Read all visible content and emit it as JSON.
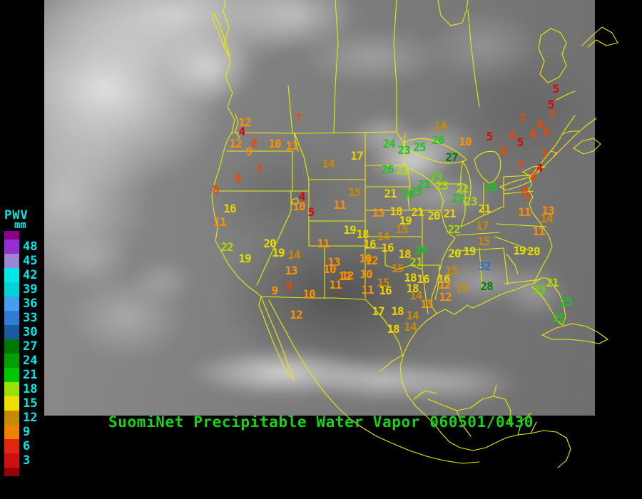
{
  "title": {
    "text": "SuomiNet Precipitable Water Vapor 060501/0430",
    "color": "#16D316"
  },
  "scale": {
    "title": "PWV",
    "unit": "mm",
    "label_color": "#00E8E8",
    "top_cap_color": "#8B008B",
    "bottom_cap_color": "#990000",
    "entries": [
      {
        "label": "48",
        "color": "#9430D0"
      },
      {
        "label": "45",
        "color": "#9C86D4"
      },
      {
        "label": "42",
        "color": "#00E8E8"
      },
      {
        "label": "39",
        "color": "#00D4D4"
      },
      {
        "label": "36",
        "color": "#44A0EE"
      },
      {
        "label": "33",
        "color": "#2E7ED8"
      },
      {
        "label": "30",
        "color": "#1C5AA0"
      },
      {
        "label": "27",
        "color": "#007800"
      },
      {
        "label": "24",
        "color": "#00A000"
      },
      {
        "label": "21",
        "color": "#00C800"
      },
      {
        "label": "18",
        "color": "#9BE000"
      },
      {
        "label": "15",
        "color": "#F0E000"
      },
      {
        "label": "12",
        "color": "#C48A00"
      },
      {
        "label": "9",
        "color": "#F08000"
      },
      {
        "label": "6",
        "color": "#E02810"
      },
      {
        "label": "3",
        "color": "#CC1010"
      }
    ]
  },
  "map": {
    "outline_color": "#ECEC00",
    "background_color": "#000000"
  },
  "palette": {
    "r": "#E00000",
    "f": "#F04600",
    "o": "#FF9000",
    "d": "#CC8A00",
    "y": "#EDD400",
    "Y": "#E3DE00",
    "l": "#AADC00",
    "L": "#5FD800",
    "G": "#1EC41E",
    "D": "#008000",
    "b": "#2E6EC8"
  },
  "stations": [
    [
      "7",
      418,
      166,
      "f"
    ],
    [
      "12",
      343,
      172,
      "o"
    ],
    [
      "4",
      339,
      185,
      "r"
    ],
    [
      "12",
      330,
      202,
      "o"
    ],
    [
      "8",
      356,
      201,
      "f"
    ],
    [
      "10",
      385,
      202,
      "o"
    ],
    [
      "11",
      409,
      205,
      "o"
    ],
    [
      "9",
      349,
      213,
      "o"
    ],
    [
      "7",
      363,
      237,
      "f"
    ],
    [
      "14",
      460,
      230,
      "d"
    ],
    [
      "9",
      333,
      251,
      "f"
    ],
    [
      "8",
      302,
      266,
      "f"
    ],
    [
      "16",
      322,
      293,
      "y"
    ],
    [
      "11",
      308,
      312,
      "o"
    ],
    [
      "4",
      423,
      276,
      "r"
    ],
    [
      "10",
      419,
      290,
      "o"
    ],
    [
      "5",
      436,
      298,
      "r"
    ],
    [
      "11",
      476,
      288,
      "o"
    ],
    [
      "19",
      490,
      323,
      "Y"
    ],
    [
      "18",
      508,
      329,
      "y"
    ],
    [
      "22",
      318,
      347,
      "l"
    ],
    [
      "19",
      343,
      363,
      "Y"
    ],
    [
      "20",
      378,
      342,
      "Y"
    ],
    [
      "19",
      390,
      355,
      "Y"
    ],
    [
      "14",
      412,
      358,
      "d"
    ],
    [
      "11",
      453,
      342,
      "o"
    ],
    [
      "13",
      408,
      380,
      "o"
    ],
    [
      "13",
      468,
      368,
      "o"
    ],
    [
      "10",
      462,
      378,
      "o"
    ],
    [
      "12",
      483,
      388,
      "o"
    ],
    [
      "11",
      470,
      400,
      "o"
    ],
    [
      "9",
      405,
      402,
      "f"
    ],
    [
      "9",
      385,
      408,
      "o"
    ],
    [
      "10",
      433,
      413,
      "o"
    ],
    [
      "12",
      415,
      442,
      "o"
    ],
    [
      "17",
      500,
      219,
      "y"
    ],
    [
      "24",
      545,
      202,
      "G"
    ],
    [
      "23",
      566,
      211,
      "G"
    ],
    [
      "25",
      588,
      207,
      "G"
    ],
    [
      "26",
      614,
      197,
      "G"
    ],
    [
      "10",
      652,
      199,
      "o"
    ],
    [
      "27",
      633,
      221,
      "D"
    ],
    [
      "14",
      617,
      177,
      "d"
    ],
    [
      "26",
      543,
      238,
      "G"
    ],
    [
      "21",
      564,
      240,
      "l"
    ],
    [
      "15",
      497,
      270,
      "d"
    ],
    [
      "21",
      547,
      272,
      "y"
    ],
    [
      "24",
      570,
      273,
      "G"
    ],
    [
      "25",
      583,
      269,
      "G"
    ],
    [
      "21",
      594,
      259,
      "G"
    ],
    [
      "23",
      611,
      249,
      "L"
    ],
    [
      "23",
      619,
      261,
      "l"
    ],
    [
      "22",
      648,
      265,
      "l"
    ],
    [
      "26",
      688,
      263,
      "G"
    ],
    [
      "23",
      641,
      279,
      "G"
    ],
    [
      "23",
      660,
      283,
      "l"
    ],
    [
      "21",
      679,
      293,
      "y"
    ],
    [
      "13",
      530,
      299,
      "o"
    ],
    [
      "18",
      555,
      297,
      "y"
    ],
    [
      "21",
      585,
      298,
      "y"
    ],
    [
      "20",
      608,
      303,
      "Y"
    ],
    [
      "21",
      630,
      300,
      "y"
    ],
    [
      "19",
      568,
      310,
      "Y"
    ],
    [
      "15",
      563,
      322,
      "d"
    ],
    [
      "22",
      636,
      322,
      "l"
    ],
    [
      "17",
      676,
      317,
      "d"
    ],
    [
      "14",
      537,
      332,
      "d"
    ],
    [
      "16",
      518,
      343,
      "y"
    ],
    [
      "16",
      543,
      348,
      "y"
    ],
    [
      "26",
      590,
      351,
      "G"
    ],
    [
      "18",
      567,
      357,
      "y"
    ],
    [
      "21",
      583,
      368,
      "l"
    ],
    [
      "10",
      512,
      363,
      "o"
    ],
    [
      "12",
      521,
      366,
      "o"
    ],
    [
      "15",
      557,
      377,
      "d"
    ],
    [
      "12",
      487,
      387,
      "o"
    ],
    [
      "10",
      513,
      385,
      "o"
    ],
    [
      "15",
      537,
      397,
      "d"
    ],
    [
      "18",
      575,
      390,
      "y"
    ],
    [
      "16",
      593,
      392,
      "y"
    ],
    [
      "16",
      622,
      392,
      "y"
    ],
    [
      "15",
      633,
      380,
      "d"
    ],
    [
      "20",
      637,
      356,
      "Y"
    ],
    [
      "19",
      658,
      353,
      "Y"
    ],
    [
      "15",
      678,
      339,
      "d"
    ],
    [
      "12",
      623,
      400,
      "o"
    ],
    [
      "15",
      647,
      405,
      "d"
    ],
    [
      "11",
      515,
      407,
      "o"
    ],
    [
      "16",
      540,
      408,
      "y"
    ],
    [
      "18",
      578,
      405,
      "y"
    ],
    [
      "14",
      583,
      415,
      "d"
    ],
    [
      "12",
      624,
      417,
      "o"
    ],
    [
      "13",
      598,
      427,
      "o"
    ],
    [
      "17",
      530,
      437,
      "y"
    ],
    [
      "18",
      557,
      437,
      "y"
    ],
    [
      "14",
      578,
      443,
      "d"
    ],
    [
      "14",
      575,
      459,
      "d"
    ],
    [
      "18",
      551,
      462,
      "y"
    ],
    [
      "19",
      728,
      352,
      "Y"
    ],
    [
      "20",
      748,
      353,
      "Y"
    ],
    [
      "32",
      679,
      374,
      "b"
    ],
    [
      "28",
      682,
      402,
      "D"
    ],
    [
      "23",
      756,
      407,
      "L"
    ],
    [
      "21",
      774,
      397,
      "l"
    ],
    [
      "25",
      793,
      424,
      "G"
    ],
    [
      "25",
      783,
      447,
      "G"
    ],
    [
      "11",
      755,
      325,
      "o"
    ],
    [
      "14",
      766,
      307,
      "d"
    ],
    [
      "11",
      735,
      298,
      "o"
    ],
    [
      "13",
      768,
      296,
      "o"
    ],
    [
      "8",
      747,
      248,
      "f"
    ],
    [
      "8",
      735,
      269,
      "f"
    ],
    [
      "7",
      739,
      278,
      "f"
    ],
    [
      "7",
      763,
      217,
      "f"
    ],
    [
      "7",
      730,
      232,
      "f"
    ],
    [
      "4",
      756,
      236,
      "r"
    ],
    [
      "5",
      779,
      125,
      "r"
    ],
    [
      "5",
      772,
      147,
      "r"
    ],
    [
      "7",
      774,
      162,
      "f"
    ],
    [
      "7",
      732,
      167,
      "f"
    ],
    [
      "6",
      757,
      175,
      "f"
    ],
    [
      "6",
      766,
      185,
      "f"
    ],
    [
      "6",
      747,
      188,
      "f"
    ],
    [
      "5",
      686,
      192,
      "r"
    ],
    [
      "6",
      718,
      190,
      "f"
    ],
    [
      "5",
      729,
      200,
      "r"
    ],
    [
      "6",
      706,
      212,
      "f"
    ]
  ]
}
